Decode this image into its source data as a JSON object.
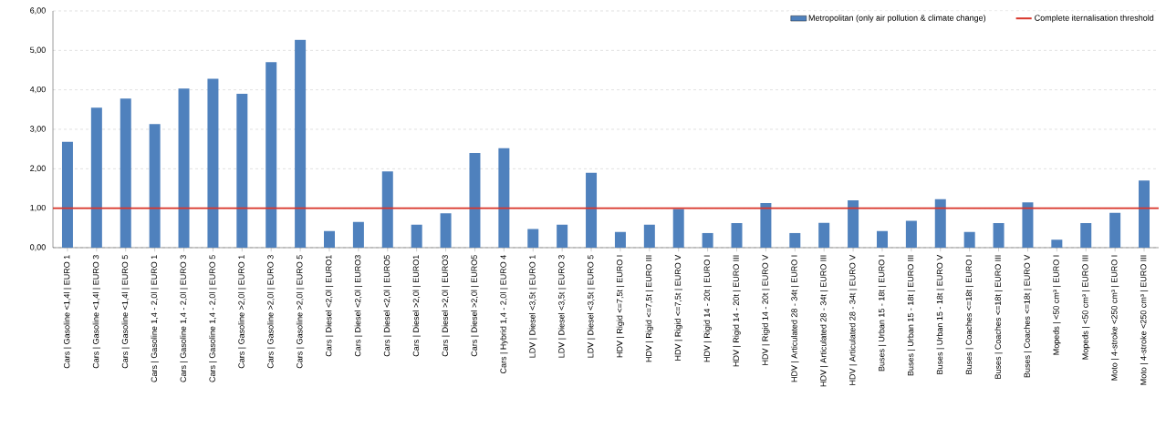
{
  "chart_data": {
    "type": "bar",
    "categories": [
      "Cars | Gasoline <1,4l | EURO 1",
      "Cars | Gasoline <1,4l | EURO 3",
      "Cars | Gasoline <1,4l | EURO 5",
      "Cars | Gasoline 1,4 - 2,0l | EURO 1",
      "Cars | Gasoline 1,4 - 2,0l | EURO 3",
      "Cars | Gasoline 1,4 - 2,0l | EURO 5",
      "Cars | Gasoline >2,0l | EURO 1",
      "Cars | Gasoline >2,0l | EURO 3",
      "Cars | Gasoline >2,0l | EURO 5",
      "Cars | Diesel <2,0l | EURO1",
      "Cars | Diesel <2,0l | EURO3",
      "Cars | Diesel <2,0l | EURO5",
      "Cars | Diesel >2,0l | EURO1",
      "Cars | Diesel >2,0l | EURO3",
      "Cars | Diesel >2,0l | EURO5",
      "Cars | Hybrid 1,4 - 2,0l | EURO 4",
      "LDV | Diesel <3,5t | EURO 1",
      "LDV | Diesel <3,5t | EURO 3",
      "LDV | Diesel <3,5t | EURO 5",
      "HDV | Rigid <=7,5t | EURO I",
      "HDV | Rigid <=7,5t | EURO III",
      "HDV | Rigid <=7,5t | EURO V",
      "HDV | Rigid 14 - 20t | EURO I",
      "HDV | Rigid 14 - 20t | EURO III",
      "HDV | Rigid 14 - 20t | EURO V",
      "HDV | Articulated 28 - 34t | EURO I",
      "HDV | Articulated 28 - 34t | EURO III",
      "HDV | Articulated 28 - 34t | EURO V",
      "Buses | Urban 15 - 18t | EURO I",
      "Buses | Urban 15 - 18t | EURO III",
      "Buses | Urban 15 - 18t | EURO V",
      "Buses | Coaches <=18t | EURO I",
      "Buses | Coaches <=18t | EURO III",
      "Buses | Coaches <=18t | EURO V",
      "Mopeds | <50 cm³ | EURO I",
      "Mopeds | <50 cm³ | EURO III",
      "Moto | 4-stroke <250 cm³ | EURO I",
      "Moto | 4-stroke <250 cm³ | EURO III"
    ],
    "series": [
      {
        "name": "Metropolitan (only air pollution & climate change)",
        "color": "#4f81bd",
        "values": [
          2.68,
          3.55,
          3.78,
          3.13,
          4.03,
          4.28,
          3.9,
          4.7,
          5.27,
          0.42,
          0.65,
          1.93,
          0.58,
          0.87,
          2.4,
          2.52,
          0.47,
          0.58,
          1.9,
          0.4,
          0.58,
          0.98,
          0.37,
          0.62,
          1.13,
          0.37,
          0.63,
          1.2,
          0.42,
          0.68,
          1.23,
          0.4,
          0.62,
          1.15,
          0.2,
          0.62,
          0.88,
          1.7
        ]
      }
    ],
    "ref_lines": [
      {
        "axis": "y",
        "value": 1,
        "label": "Complete iternalisation threshold",
        "color": "#d9362b"
      }
    ],
    "ylim": [
      0,
      6
    ],
    "yticks": [
      {
        "value": 0,
        "label": "0,00"
      },
      {
        "value": 1,
        "label": "1,00"
      },
      {
        "value": 2,
        "label": "2,00"
      },
      {
        "value": 3,
        "label": "3,00"
      },
      {
        "value": 4,
        "label": "4,00"
      },
      {
        "value": 5,
        "label": "5,00"
      },
      {
        "value": 6,
        "label": "6,00"
      }
    ],
    "grid": "y",
    "legend": "top right"
  }
}
